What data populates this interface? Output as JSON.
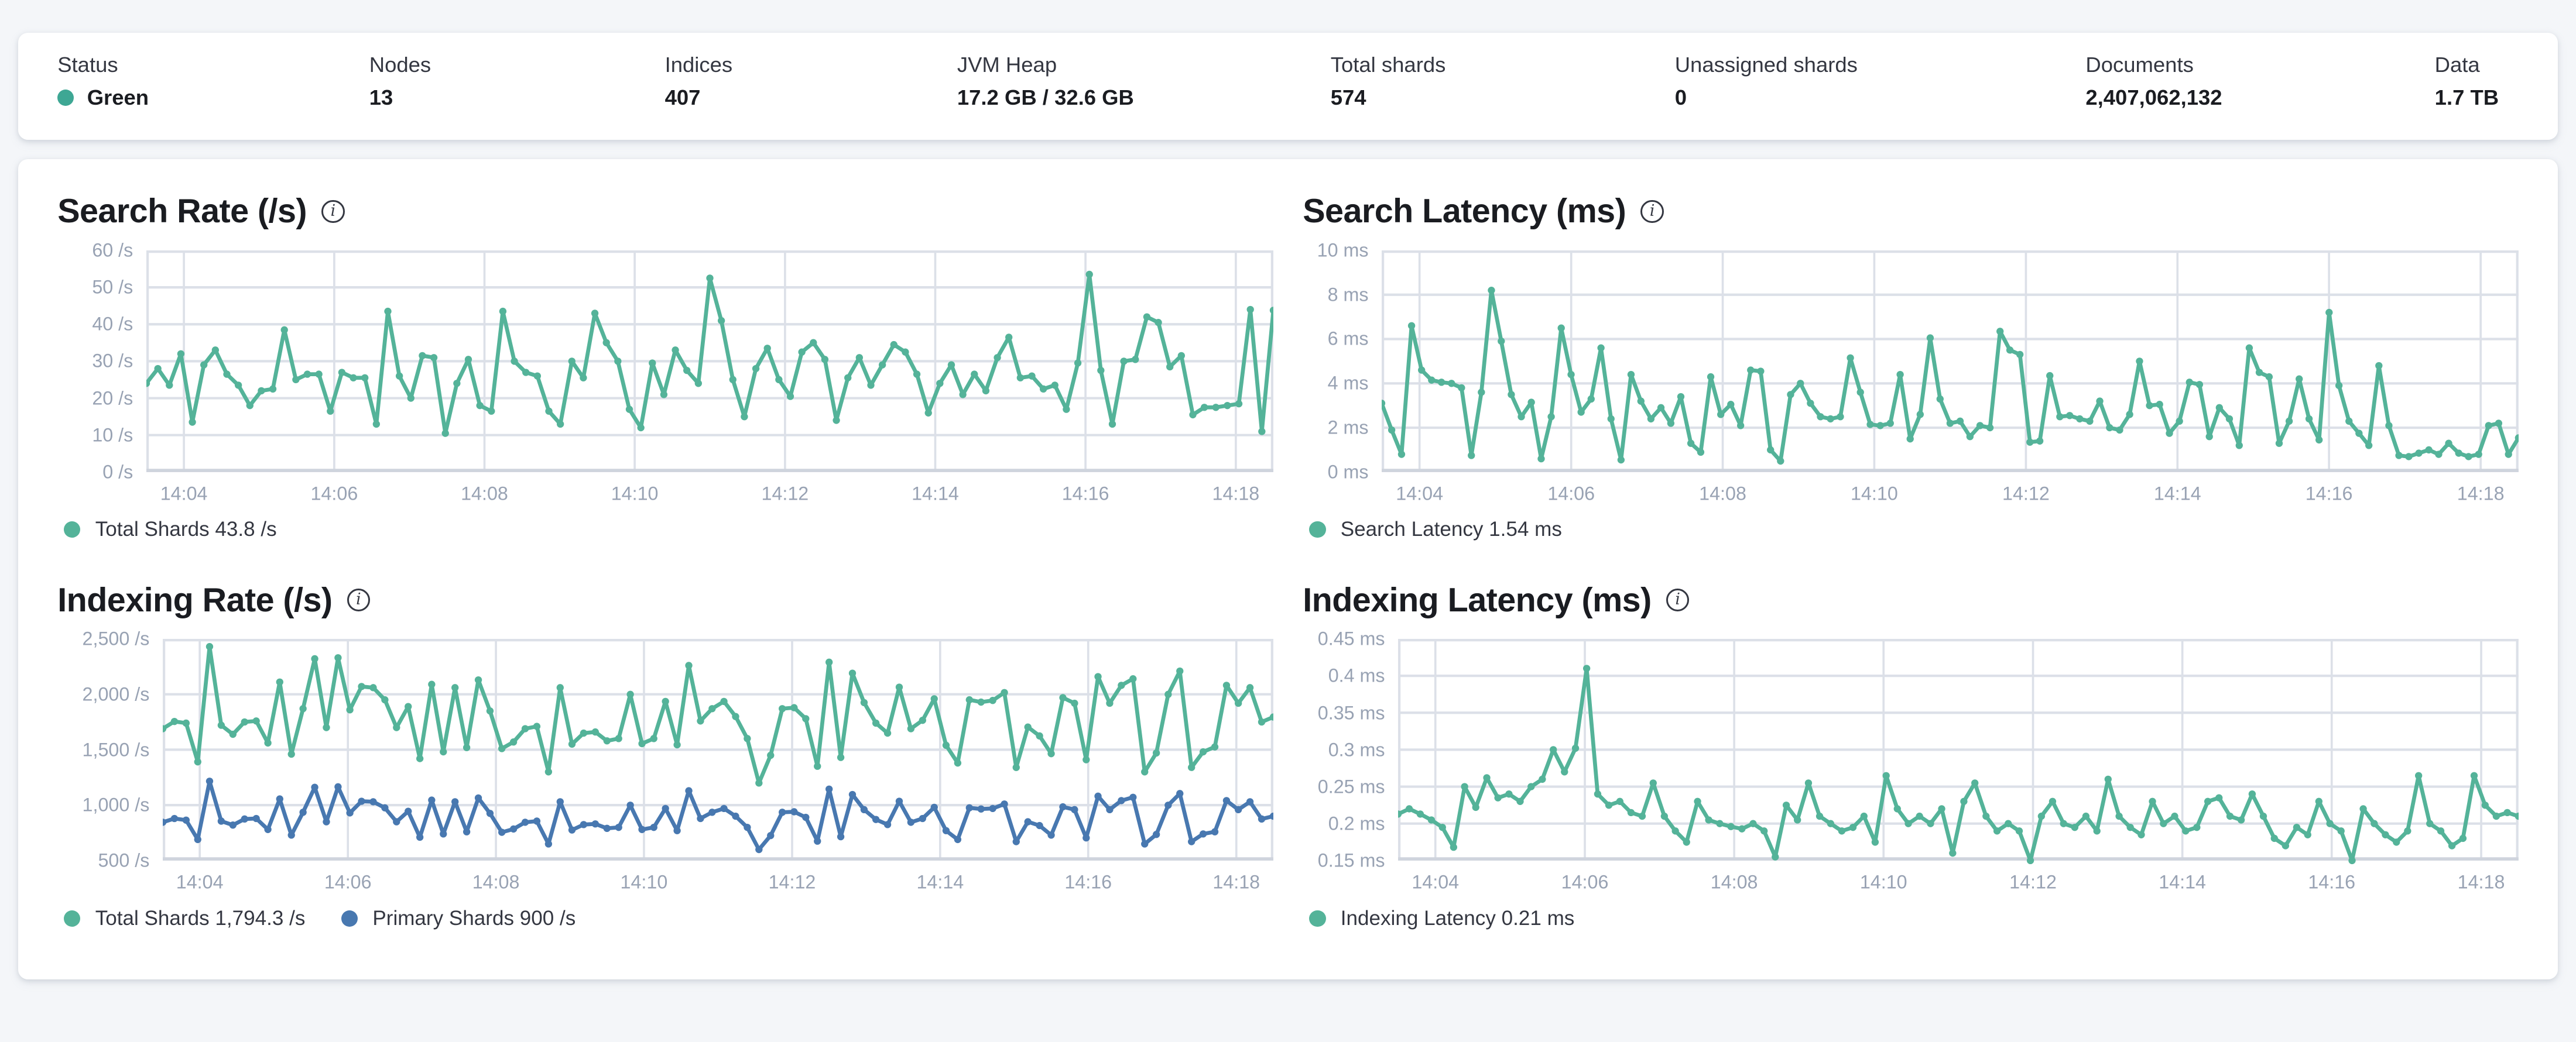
{
  "header": {
    "items": [
      {
        "label": "Status",
        "value": "Green"
      },
      {
        "label": "Nodes",
        "value": "13"
      },
      {
        "label": "Indices",
        "value": "407"
      },
      {
        "label": "JVM Heap",
        "value": "17.2 GB / 32.6 GB"
      },
      {
        "label": "Total shards",
        "value": "574"
      },
      {
        "label": "Unassigned shards",
        "value": "0"
      },
      {
        "label": "Documents",
        "value": "2,407,062,132"
      },
      {
        "label": "Data",
        "value": "1.7 TB"
      }
    ],
    "status_dot_color": "#3EA794"
  },
  "colors": {
    "teal_series": "#54B399",
    "blue_series": "#4878B0",
    "grid": "#DCE0E8",
    "axis_text": "#98A2B3"
  },
  "xticks": [
    {
      "f": 0.0333,
      "label": "14:04"
    },
    {
      "f": 0.1667,
      "label": "14:06"
    },
    {
      "f": 0.3,
      "label": "14:08"
    },
    {
      "f": 0.4333,
      "label": "14:10"
    },
    {
      "f": 0.5667,
      "label": "14:12"
    },
    {
      "f": 0.7,
      "label": "14:14"
    },
    {
      "f": 0.8333,
      "label": "14:16"
    },
    {
      "f": 0.9667,
      "label": "14:18"
    }
  ],
  "chart_data": [
    {
      "type": "line",
      "title": "Search Rate (/s)",
      "ylim": [
        0,
        60
      ],
      "ylabel_w": 54,
      "yticks": [
        {
          "f": 0,
          "label": "60 /s"
        },
        {
          "f": 0.1667,
          "label": "50 /s"
        },
        {
          "f": 0.3333,
          "label": "40 /s"
        },
        {
          "f": 0.5,
          "label": "30 /s"
        },
        {
          "f": 0.6667,
          "label": "20 /s"
        },
        {
          "f": 0.8333,
          "label": "10 /s"
        },
        {
          "f": 1,
          "label": "0 /s"
        }
      ],
      "series": [
        {
          "name": "Total Shards",
          "color": "#54B399",
          "values": [
            24,
            28,
            23.5,
            32,
            13.5,
            29,
            33,
            26.5,
            23.5,
            18,
            22,
            22.5,
            38.5,
            25,
            26.5,
            26.5,
            16.5,
            27,
            25.5,
            25.5,
            13,
            43.5,
            26,
            20,
            31.5,
            31,
            10.5,
            24,
            30.5,
            18,
            16.5,
            43.5,
            30,
            27,
            26,
            16.5,
            13,
            30,
            25.5,
            43,
            35,
            30,
            17,
            12,
            29.5,
            21,
            33,
            27.5,
            24,
            52.5,
            41,
            25,
            15,
            28,
            33.5,
            25,
            20.5,
            32.5,
            35,
            30.5,
            14,
            25.5,
            31,
            23.5,
            29,
            34.5,
            32.5,
            26.5,
            16,
            24,
            29,
            21,
            26.5,
            22,
            31,
            36.5,
            25.5,
            26,
            22.5,
            23.5,
            17,
            29.5,
            53.5,
            27.5,
            13,
            30,
            30.5,
            42,
            40.5,
            28.5,
            31.5,
            15.5,
            17.5,
            17.5,
            18,
            18.5,
            44,
            11,
            43.8
          ]
        }
      ],
      "legend": [
        {
          "label": "Total Shards 43.8 /s",
          "color": "#54B399"
        }
      ]
    },
    {
      "type": "line",
      "title": "Search Latency (ms)",
      "ylim": [
        0,
        10
      ],
      "ylabel_w": 48,
      "yticks": [
        {
          "f": 0,
          "label": "10 ms"
        },
        {
          "f": 0.2,
          "label": "8 ms"
        },
        {
          "f": 0.4,
          "label": "6 ms"
        },
        {
          "f": 0.6,
          "label": "4 ms"
        },
        {
          "f": 0.8,
          "label": "2 ms"
        },
        {
          "f": 1,
          "label": "0 ms"
        }
      ],
      "series": [
        {
          "name": "Search Latency",
          "color": "#54B399",
          "values": [
            3.1,
            1.9,
            0.8,
            6.6,
            4.6,
            4.15,
            4.05,
            4,
            3.8,
            0.75,
            3.6,
            8.2,
            5.9,
            3.5,
            2.5,
            3.15,
            0.6,
            2.5,
            6.5,
            4.4,
            2.7,
            3.3,
            5.6,
            2.4,
            0.55,
            4.4,
            3.2,
            2.4,
            2.9,
            2.2,
            3.4,
            1.3,
            0.9,
            4.3,
            2.6,
            3.05,
            2.1,
            4.6,
            4.55,
            1,
            0.5,
            3.5,
            4,
            3.1,
            2.5,
            2.4,
            2.5,
            5.15,
            3.6,
            2.15,
            2.1,
            2.2,
            4.4,
            1.5,
            2.6,
            6.05,
            3.3,
            2.2,
            2.3,
            1.6,
            2.1,
            2,
            6.35,
            5.5,
            5.3,
            1.35,
            1.4,
            4.35,
            2.5,
            2.55,
            2.4,
            2.3,
            3.2,
            2,
            1.9,
            2.6,
            5,
            3,
            3.05,
            1.75,
            2.3,
            4.05,
            3.95,
            1.6,
            2.9,
            2.4,
            1.2,
            5.6,
            4.5,
            4.3,
            1.3,
            2.3,
            4.2,
            2.4,
            1.45,
            7.2,
            3.9,
            2.3,
            1.75,
            1.2,
            4.8,
            2.1,
            0.75,
            0.7,
            0.85,
            1,
            0.8,
            1.3,
            0.85,
            0.7,
            0.8,
            2.1,
            2.2,
            0.8,
            1.54
          ]
        }
      ],
      "legend": [
        {
          "label": "Search Latency 1.54 ms",
          "color": "#54B399"
        }
      ]
    },
    {
      "type": "line",
      "title": "Indexing Rate (/s)",
      "ylim": [
        500,
        2500
      ],
      "ylabel_w": 64,
      "yticks": [
        {
          "f": 0,
          "label": "2,500 /s"
        },
        {
          "f": 0.25,
          "label": "2,000 /s"
        },
        {
          "f": 0.5,
          "label": "1,500 /s"
        },
        {
          "f": 0.75,
          "label": "1,000 /s"
        },
        {
          "f": 1,
          "label": "500 /s"
        }
      ],
      "series": [
        {
          "name": "Total Shards",
          "color": "#54B399",
          "values": [
            1690,
            1755,
            1740,
            1390,
            2430,
            1720,
            1640,
            1750,
            1760,
            1560,
            2110,
            1460,
            1870,
            2320,
            1700,
            2330,
            1860,
            2070,
            2060,
            1950,
            1700,
            1890,
            1420,
            2090,
            1480,
            2060,
            1520,
            2130,
            1850,
            1510,
            1570,
            1690,
            1710,
            1300,
            2060,
            1550,
            1650,
            1660,
            1580,
            1600,
            2000,
            1555,
            1600,
            1935,
            1545,
            2260,
            1760,
            1870,
            1935,
            1800,
            1600,
            1200,
            1450,
            1870,
            1880,
            1780,
            1350,
            2290,
            1430,
            2190,
            1925,
            1740,
            1650,
            2065,
            1690,
            1765,
            1960,
            1540,
            1380,
            1950,
            1930,
            1945,
            2015,
            1340,
            1705,
            1625,
            1465,
            1970,
            1920,
            1410,
            2160,
            1920,
            2080,
            2140,
            1300,
            1470,
            2000,
            2210,
            1340,
            1480,
            1525,
            2080,
            1920,
            2060,
            1750,
            1794.3
          ]
        },
        {
          "name": "Primary Shards",
          "color": "#4878B0",
          "values": [
            845,
            880,
            865,
            690,
            1215,
            855,
            820,
            875,
            880,
            780,
            1055,
            730,
            935,
            1160,
            850,
            1165,
            930,
            1035,
            1030,
            975,
            850,
            945,
            710,
            1045,
            740,
            1030,
            760,
            1065,
            925,
            755,
            785,
            845,
            855,
            650,
            1030,
            775,
            825,
            830,
            790,
            800,
            1000,
            780,
            800,
            970,
            770,
            1130,
            880,
            935,
            970,
            900,
            800,
            600,
            725,
            935,
            940,
            890,
            675,
            1145,
            715,
            1095,
            960,
            870,
            825,
            1035,
            845,
            880,
            980,
            770,
            690,
            975,
            965,
            970,
            1010,
            670,
            850,
            815,
            730,
            985,
            960,
            705,
            1080,
            960,
            1040,
            1070,
            650,
            735,
            1000,
            1105,
            670,
            740,
            760,
            1040,
            960,
            1030,
            875,
            900
          ]
        }
      ],
      "legend": [
        {
          "label": "Total Shards 1,794.3 /s",
          "color": "#54B399"
        },
        {
          "label": "Primary Shards 900 /s",
          "color": "#4878B0"
        }
      ]
    },
    {
      "type": "line",
      "title": "Indexing Latency (ms)",
      "ylim": [
        0.15,
        0.45
      ],
      "ylabel_w": 58,
      "yticks": [
        {
          "f": 0,
          "label": "0.45 ms"
        },
        {
          "f": 0.1667,
          "label": "0.4 ms"
        },
        {
          "f": 0.3333,
          "label": "0.35 ms"
        },
        {
          "f": 0.5,
          "label": "0.3 ms"
        },
        {
          "f": 0.6667,
          "label": "0.25 ms"
        },
        {
          "f": 0.8333,
          "label": "0.2 ms"
        },
        {
          "f": 1,
          "label": "0.15 ms"
        }
      ],
      "series": [
        {
          "name": "Indexing Latency",
          "color": "#54B399",
          "values": [
            0.213,
            0.22,
            0.213,
            0.205,
            0.195,
            0.168,
            0.25,
            0.222,
            0.262,
            0.235,
            0.24,
            0.23,
            0.25,
            0.26,
            0.3,
            0.27,
            0.302,
            0.41,
            0.24,
            0.225,
            0.23,
            0.215,
            0.21,
            0.255,
            0.21,
            0.19,
            0.175,
            0.23,
            0.205,
            0.2,
            0.196,
            0.193,
            0.2,
            0.19,
            0.155,
            0.225,
            0.205,
            0.255,
            0.21,
            0.2,
            0.19,
            0.195,
            0.21,
            0.175,
            0.265,
            0.22,
            0.2,
            0.21,
            0.2,
            0.22,
            0.16,
            0.23,
            0.255,
            0.21,
            0.19,
            0.2,
            0.19,
            0.15,
            0.21,
            0.23,
            0.2,
            0.195,
            0.21,
            0.19,
            0.26,
            0.21,
            0.195,
            0.185,
            0.23,
            0.2,
            0.21,
            0.19,
            0.195,
            0.23,
            0.235,
            0.21,
            0.205,
            0.24,
            0.21,
            0.18,
            0.17,
            0.195,
            0.185,
            0.23,
            0.2,
            0.19,
            0.15,
            0.22,
            0.2,
            0.185,
            0.175,
            0.19,
            0.265,
            0.2,
            0.19,
            0.17,
            0.18,
            0.265,
            0.225,
            0.21,
            0.215,
            0.21
          ]
        }
      ],
      "legend": [
        {
          "label": "Indexing Latency 0.21 ms",
          "color": "#54B399"
        }
      ]
    }
  ]
}
